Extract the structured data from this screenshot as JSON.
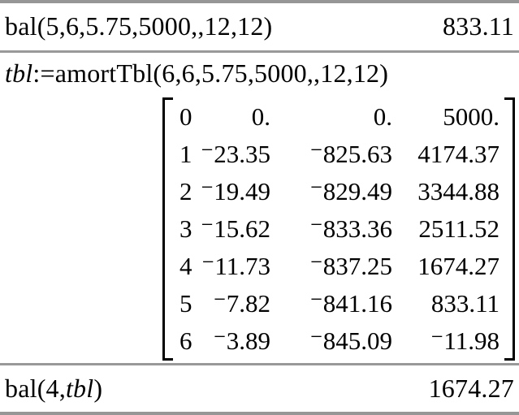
{
  "app": {
    "name": "TI-Nspire Calculator history"
  },
  "colors": {
    "background": "#ffffff",
    "text": "#000000",
    "separator": "#999999",
    "border_bar": "#969696"
  },
  "history": [
    {
      "input_segments": [
        {
          "text": "bal(5,6,5.75,5000,,12,12)",
          "italic": false
        }
      ],
      "result": "833.11"
    },
    {
      "input_segments": [
        {
          "text": "tbl",
          "italic": true
        },
        {
          "text": ":=amortTbl(6,6,5.75,5000,,12,12)",
          "italic": false
        }
      ],
      "matrix_result": [
        [
          "0",
          "0.",
          "0.",
          "5000."
        ],
        [
          "1",
          "⁻23.35",
          "⁻825.63",
          "4174.37"
        ],
        [
          "2",
          "⁻19.49",
          "⁻829.49",
          "3344.88"
        ],
        [
          "3",
          "⁻15.62",
          "⁻833.36",
          "2511.52"
        ],
        [
          "4",
          "⁻11.73",
          "⁻837.25",
          "1674.27"
        ],
        [
          "5",
          "⁻7.82",
          "⁻841.16",
          "833.11"
        ],
        [
          "6",
          "⁻3.89",
          "⁻845.09",
          "⁻11.98"
        ]
      ]
    },
    {
      "input_segments": [
        {
          "text": "bal(4,",
          "italic": false
        },
        {
          "text": "tbl",
          "italic": true
        },
        {
          "text": ")",
          "italic": false
        }
      ],
      "result": "1674.27"
    }
  ]
}
